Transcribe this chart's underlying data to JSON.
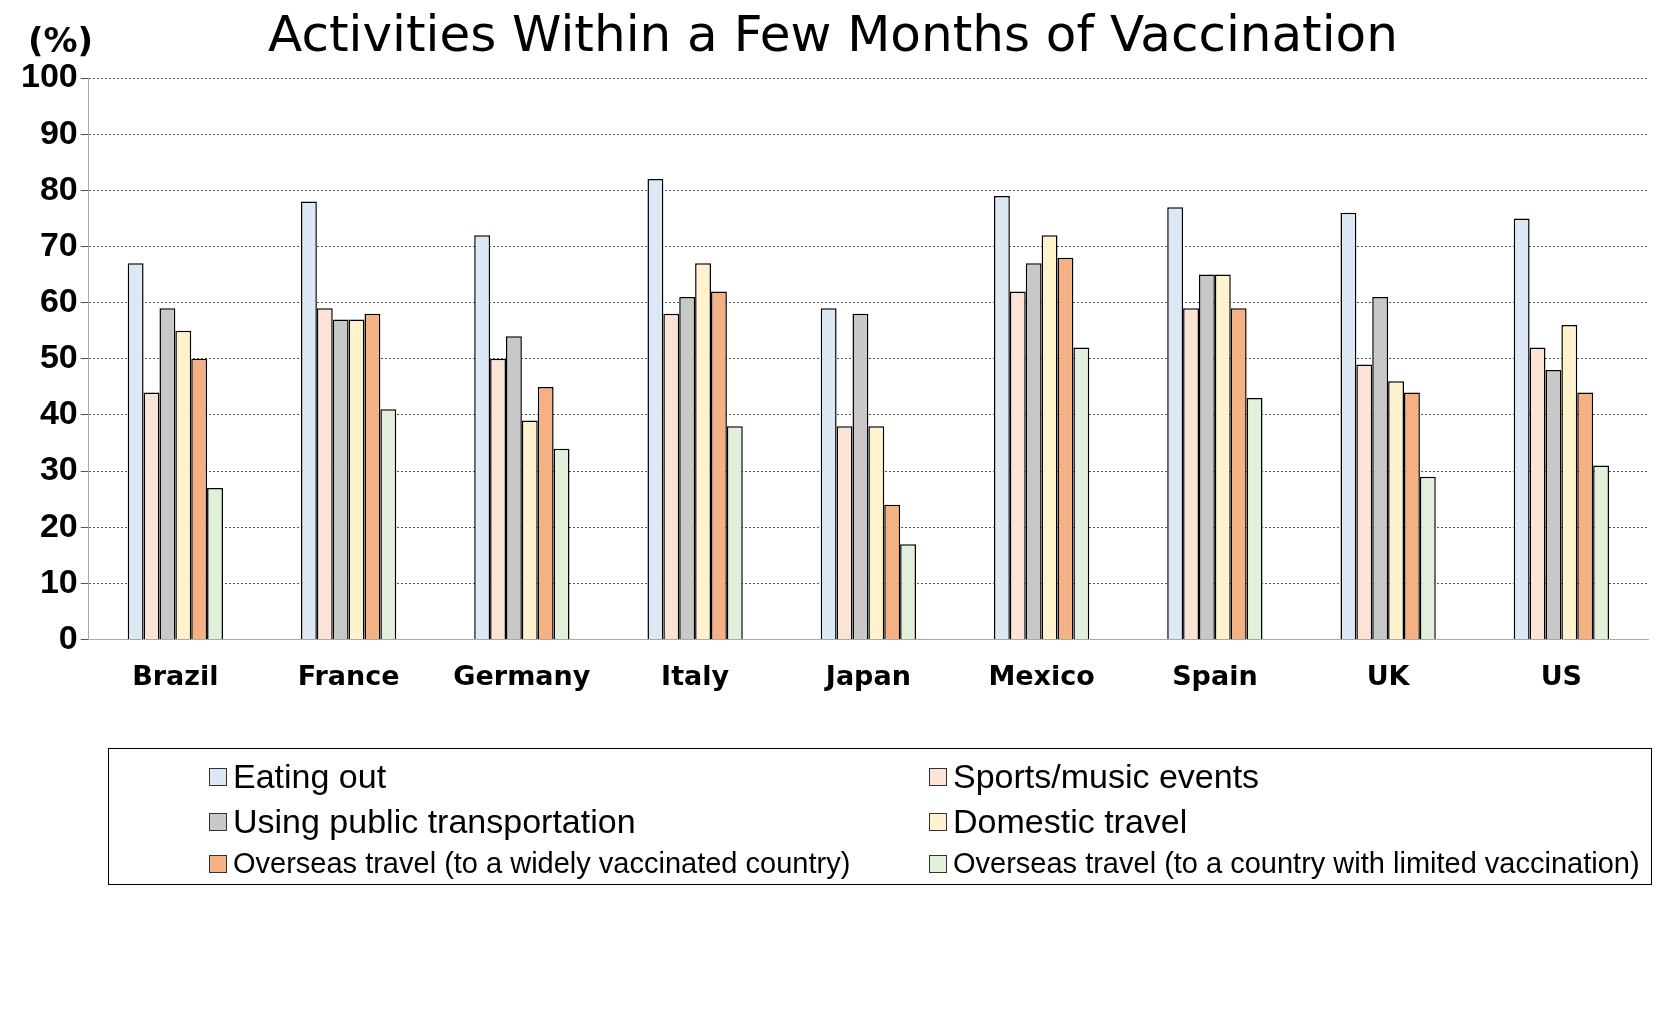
{
  "chart_data": {
    "type": "bar",
    "title": "Activities Within a Few Months of Vaccination",
    "ylabel": "(%)",
    "categories": [
      "Brazil",
      "France",
      "Germany",
      "Italy",
      "Japan",
      "Mexico",
      "Spain",
      "UK",
      "US"
    ],
    "series": [
      {
        "name": "Eating out",
        "color": "#dce9f5",
        "values": [
          67,
          78,
          72,
          82,
          59,
          79,
          77,
          76,
          75
        ]
      },
      {
        "name": "Sports/music events",
        "color": "#fbe4d6",
        "values": [
          44,
          59,
          50,
          58,
          38,
          62,
          59,
          49,
          52
        ]
      },
      {
        "name": "Using public transportation",
        "color": "#c8c8c8",
        "values": [
          59,
          57,
          54,
          61,
          58,
          67,
          65,
          61,
          48
        ]
      },
      {
        "name": "Domestic travel",
        "color": "#fff2cc",
        "values": [
          55,
          57,
          39,
          67,
          38,
          72,
          65,
          46,
          56
        ]
      },
      {
        "name": "Overseas travel (to a widely vaccinated country)",
        "color": "#f4b183",
        "values": [
          50,
          58,
          45,
          62,
          24,
          68,
          59,
          44,
          44
        ]
      },
      {
        "name": "Overseas travel (to a country with limited vaccination)",
        "color": "#e2efda",
        "values": [
          27,
          41,
          34,
          38,
          17,
          52,
          43,
          29,
          31
        ]
      }
    ],
    "ylim": [
      0,
      100
    ],
    "yticks": [
      0,
      10,
      20,
      30,
      40,
      50,
      60,
      70,
      80,
      90,
      100
    ],
    "grid": "y",
    "legend": "bottom"
  }
}
